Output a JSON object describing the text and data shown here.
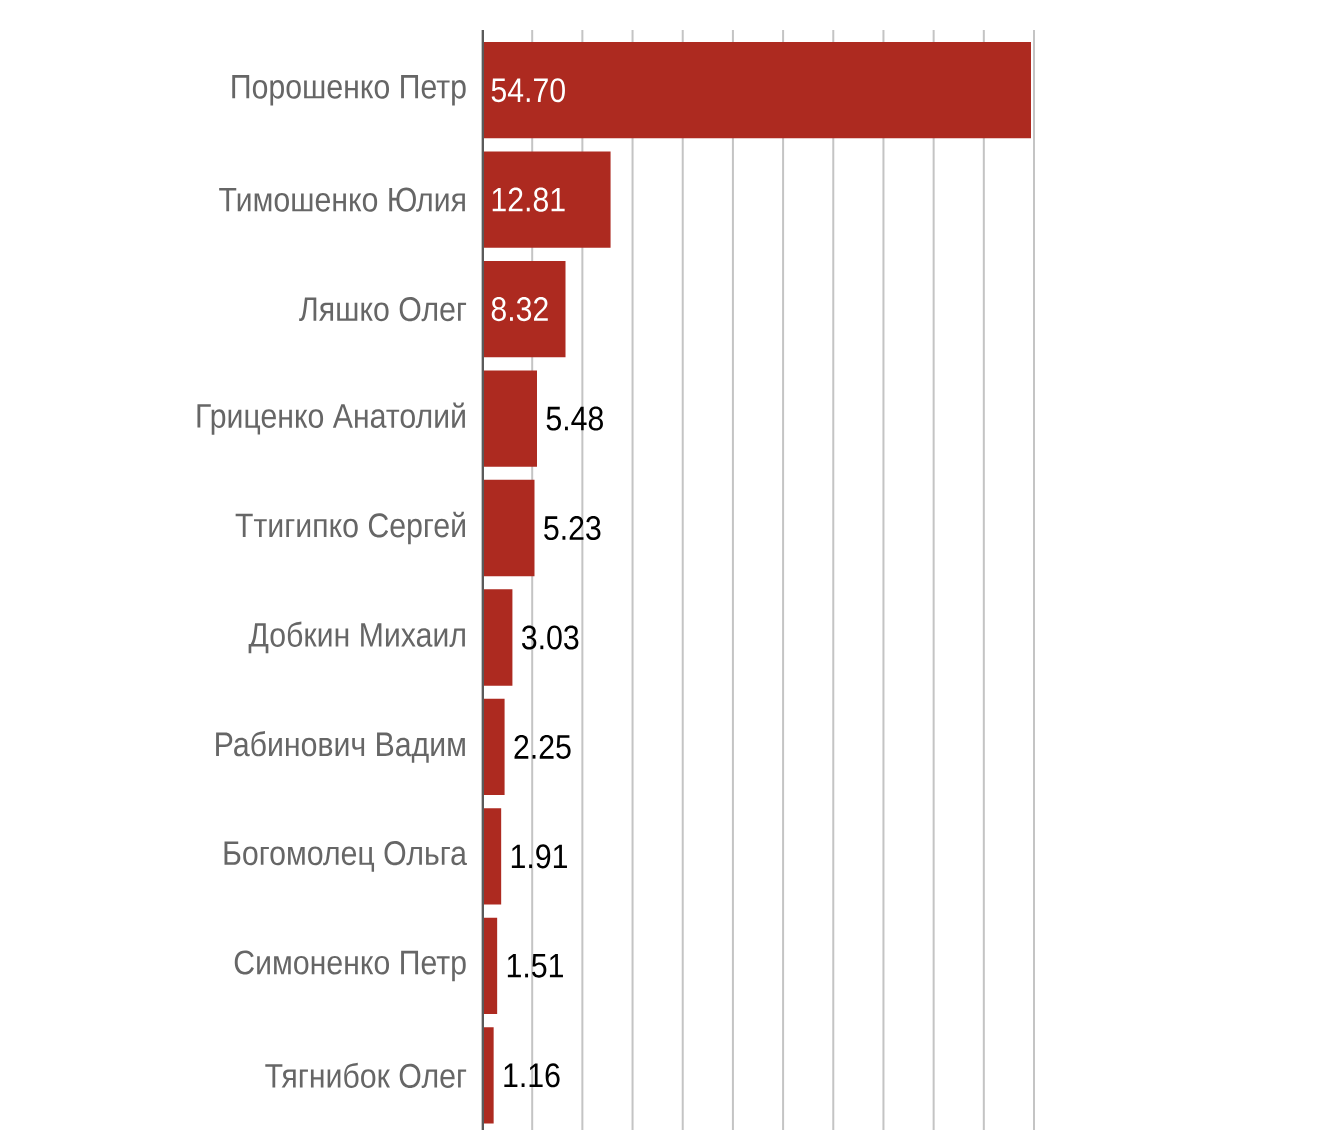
{
  "chart_data": {
    "type": "bar",
    "orientation": "horizontal",
    "categories": [
      "Порошенко Петр",
      "Тимошенко Юлия",
      "Ляшко Олег",
      "Гриценко Анатолий",
      "Ттигипко Сергей",
      "Добкин Михаил",
      "Рабинович Вадим",
      "Богомолец Ольга",
      "Симоненко Петр",
      "Тягнибок Олег"
    ],
    "values": [
      54.7,
      12.81,
      8.32,
      5.48,
      5.23,
      3.03,
      2.25,
      1.91,
      1.51,
      1.16
    ],
    "value_labels": [
      "54.70",
      "12.81",
      "8.32",
      "5.48",
      "5.23",
      "3.03",
      "2.25",
      "1.91",
      "1.51",
      "1.16"
    ],
    "color": "#ad2a20",
    "xlim": [
      0,
      55
    ],
    "xticks": [
      {
        "value": 0,
        "label": null
      },
      {
        "value": 5,
        "label": null
      },
      {
        "value": 10,
        "label": null
      },
      {
        "value": 15,
        "label": null
      },
      {
        "value": 20,
        "label": null
      },
      {
        "value": 25,
        "label": null
      },
      {
        "value": 30,
        "label": null
      },
      {
        "value": 35,
        "label": null
      },
      {
        "value": 40,
        "label": null
      },
      {
        "value": 45,
        "label": null
      },
      {
        "value": 50,
        "label": null
      },
      {
        "value": 55,
        "label": null
      }
    ],
    "grid": "x",
    "tick_labels": "y"
  }
}
